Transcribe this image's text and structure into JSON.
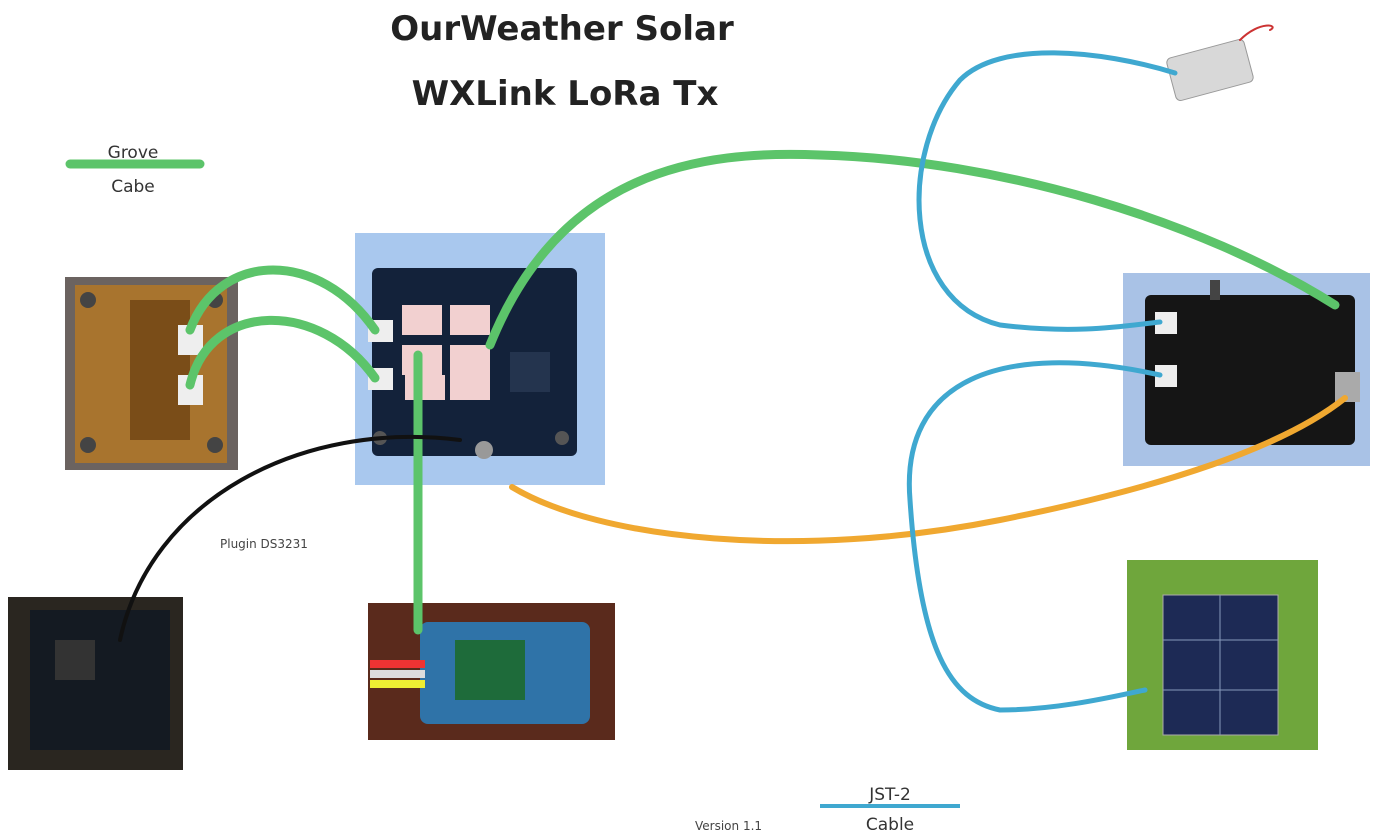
{
  "title": {
    "line1": "OurWeather Solar",
    "line2": "WXLink LoRa Tx"
  },
  "legend": {
    "grove": {
      "line1": "Grove",
      "line2": "Cabe"
    },
    "jst": {
      "line1": "JST-2",
      "line2": "Cable"
    }
  },
  "annotations": {
    "plugin": "Plugin DS3231",
    "version": "Version 1.1"
  }
}
